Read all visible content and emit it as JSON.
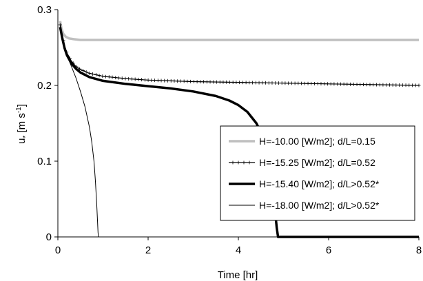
{
  "chart_data": {
    "type": "line",
    "title": "",
    "xlabel": "Time [hr]",
    "ylabel": {
      "main": "u",
      "subscript": "*",
      "unit_prefix": " [m s",
      "unit_exp": "-1",
      "unit_suffix": "]"
    },
    "xlim": [
      0,
      8
    ],
    "ylim": [
      0,
      0.3
    ],
    "xticks": [
      0,
      2,
      4,
      6,
      8
    ],
    "yticks": [
      0,
      0.1,
      0.2,
      0.3
    ],
    "xtick_labels": [
      "0",
      "2",
      "4",
      "6",
      "8"
    ],
    "ytick_labels": [
      "0",
      "0.1",
      "0.2",
      "0.3"
    ],
    "grid": false,
    "legend_position": "center-right",
    "series": [
      {
        "name": "H=-10.00 [W/m2]; d/L=0.15",
        "color": "#bfbfbf",
        "style": "thick",
        "marker": "none",
        "x": [
          0.05,
          0.08,
          0.12,
          0.18,
          0.25,
          0.35,
          0.5,
          0.7,
          1.0,
          2,
          3,
          4,
          5,
          6,
          7,
          8
        ],
        "y": [
          0.285,
          0.275,
          0.268,
          0.264,
          0.262,
          0.261,
          0.26,
          0.26,
          0.26,
          0.26,
          0.26,
          0.26,
          0.26,
          0.26,
          0.26,
          0.26
        ]
      },
      {
        "name": "H=-15.25 [W/m2]; d/L=0.52",
        "color": "#000000",
        "style": "thin",
        "marker": "plus",
        "x": [
          0.05,
          0.1,
          0.15,
          0.2,
          0.3,
          0.4,
          0.5,
          0.7,
          1.0,
          1.5,
          2,
          3,
          4,
          5,
          6,
          7,
          8
        ],
        "y": [
          0.28,
          0.265,
          0.252,
          0.243,
          0.232,
          0.225,
          0.221,
          0.216,
          0.212,
          0.209,
          0.207,
          0.205,
          0.204,
          0.203,
          0.202,
          0.201,
          0.2
        ]
      },
      {
        "name": "H=-15.40 [W/m2]; d/L>0.52*",
        "color": "#000000",
        "style": "thick",
        "marker": "none",
        "x": [
          0.05,
          0.1,
          0.15,
          0.2,
          0.3,
          0.4,
          0.5,
          0.7,
          1.0,
          1.5,
          2,
          2.5,
          3,
          3.5,
          3.8,
          4.0,
          4.2,
          4.4,
          4.55,
          4.65,
          4.72,
          4.78,
          4.82,
          4.85,
          4.88,
          5.0,
          6,
          7,
          8
        ],
        "y": [
          0.277,
          0.262,
          0.249,
          0.24,
          0.229,
          0.222,
          0.217,
          0.211,
          0.206,
          0.202,
          0.199,
          0.196,
          0.192,
          0.186,
          0.18,
          0.174,
          0.165,
          0.15,
          0.132,
          0.11,
          0.085,
          0.055,
          0.03,
          0.012,
          0.0,
          0.0,
          0.0,
          0.0,
          0.0
        ]
      },
      {
        "name": "H=-18.00 [W/m2]; d/L>0.52*",
        "color": "#000000",
        "style": "hairline",
        "marker": "none",
        "x": [
          0.05,
          0.1,
          0.15,
          0.2,
          0.3,
          0.4,
          0.5,
          0.6,
          0.7,
          0.75,
          0.8,
          0.83,
          0.86,
          0.88,
          0.89,
          0.9
        ],
        "y": [
          0.278,
          0.262,
          0.25,
          0.24,
          0.225,
          0.21,
          0.192,
          0.172,
          0.145,
          0.126,
          0.1,
          0.075,
          0.045,
          0.02,
          0.006,
          0.0
        ]
      }
    ]
  }
}
